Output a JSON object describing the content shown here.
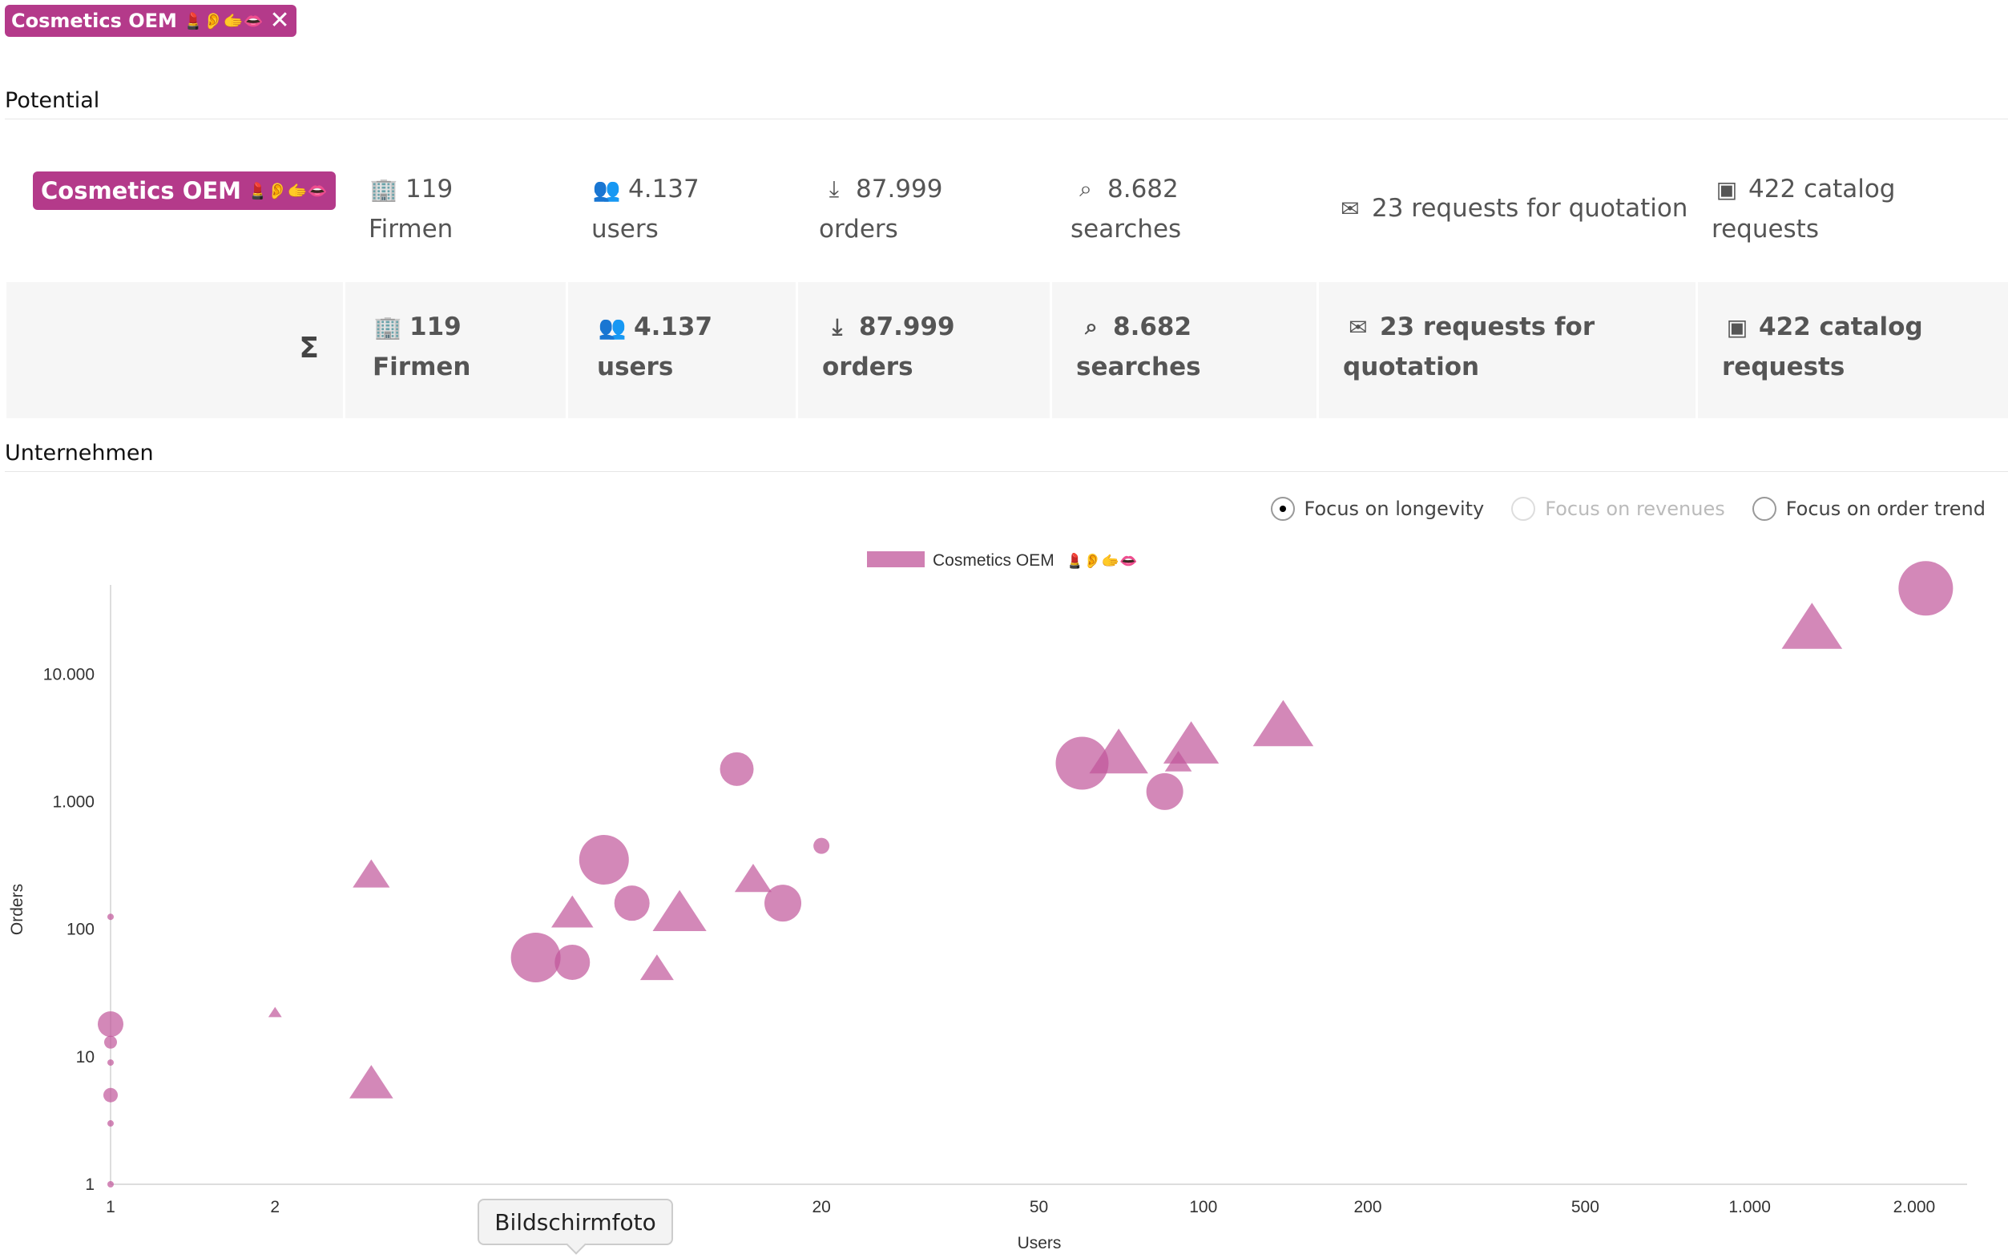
{
  "filter_tag": {
    "label": "Cosmetics OEM",
    "emoji": "💄👂🫱👄",
    "close": "✕"
  },
  "potential": {
    "title": "Potential",
    "segment_label": "Cosmetics OEM",
    "segment_emoji": "💄👂🫱👄",
    "sum_symbol": "Σ",
    "stats": [
      {
        "icon": "company-icon",
        "glyph": "🏢",
        "value": "119",
        "label": "Firmen"
      },
      {
        "icon": "users-icon",
        "glyph": "👥",
        "value": "4.137",
        "label": "users"
      },
      {
        "icon": "download-icon",
        "glyph": "⤓",
        "value": "87.999",
        "label": "orders"
      },
      {
        "icon": "search-icon",
        "glyph": "⌕",
        "value": "8.682",
        "label": "searches"
      },
      {
        "icon": "quotation-icon",
        "glyph": "✉",
        "value": "23 requests for quotation",
        "label": ""
      },
      {
        "icon": "catalog-icon",
        "glyph": "▣",
        "value": "422 catalog",
        "label": "requests"
      }
    ],
    "sum_stats": [
      {
        "value": "119",
        "label": "Firmen"
      },
      {
        "value": "4.137",
        "label": "users"
      },
      {
        "value": "87.999",
        "label": "orders"
      },
      {
        "value": "8.682",
        "label": "searches"
      },
      {
        "value": "23 requests for",
        "label": "quotation"
      },
      {
        "value": "422 catalog",
        "label": "requests"
      }
    ]
  },
  "companies": {
    "title": "Unternehmen",
    "radios": [
      {
        "label": "Focus on longevity",
        "selected": true,
        "disabled": false
      },
      {
        "label": "Focus on revenues",
        "selected": false,
        "disabled": true
      },
      {
        "label": "Focus on order trend",
        "selected": false,
        "disabled": false
      }
    ]
  },
  "tooltip": "Bildschirmfoto",
  "chart_data": {
    "type": "scatter",
    "title": "",
    "xlabel": "Users",
    "ylabel": "Orders",
    "xscale": "log",
    "yscale": "log",
    "xlim": [
      1,
      2500
    ],
    "ylim": [
      1,
      50000
    ],
    "xticks": [
      1,
      2,
      20,
      50,
      100,
      200,
      500,
      1000,
      2000
    ],
    "xtick_labels": [
      "1",
      "2",
      "20",
      "50",
      "100",
      "200",
      "500",
      "1.000",
      "2.000"
    ],
    "yticks": [
      1,
      10,
      100,
      1000,
      10000
    ],
    "ytick_labels": [
      "1",
      "10",
      "100",
      "1.000",
      "10.000"
    ],
    "color": "#c0569a",
    "legend": {
      "label": "Cosmetics OEM",
      "emoji": "💄👂🫱👄",
      "position": "top-center"
    },
    "series": [
      {
        "name": "Cosmetics OEM",
        "points": [
          {
            "x": 1,
            "y": 125,
            "r": 4,
            "shape": "circle"
          },
          {
            "x": 1,
            "y": 18,
            "r": 16,
            "shape": "circle"
          },
          {
            "x": 1,
            "y": 13,
            "r": 8,
            "shape": "circle"
          },
          {
            "x": 1,
            "y": 9,
            "r": 4,
            "shape": "circle"
          },
          {
            "x": 1,
            "y": 5,
            "r": 9,
            "shape": "circle"
          },
          {
            "x": 1,
            "y": 3,
            "r": 4,
            "shape": "circle"
          },
          {
            "x": 1,
            "y": 1,
            "r": 4,
            "shape": "circle"
          },
          {
            "x": 3,
            "y": 260,
            "r": 22,
            "shape": "triangle"
          },
          {
            "x": 2,
            "y": 22,
            "r": 8,
            "shape": "triangle"
          },
          {
            "x": 3,
            "y": 6,
            "r": 26,
            "shape": "triangle"
          },
          {
            "x": 8,
            "y": 350,
            "r": 31,
            "shape": "circle"
          },
          {
            "x": 9,
            "y": 160,
            "r": 22,
            "shape": "circle"
          },
          {
            "x": 6,
            "y": 60,
            "r": 31,
            "shape": "circle"
          },
          {
            "x": 7,
            "y": 55,
            "r": 22,
            "shape": "circle"
          },
          {
            "x": 7,
            "y": 130,
            "r": 25,
            "shape": "triangle"
          },
          {
            "x": 11,
            "y": 130,
            "r": 32,
            "shape": "triangle"
          },
          {
            "x": 10,
            "y": 48,
            "r": 20,
            "shape": "triangle"
          },
          {
            "x": 14,
            "y": 1800,
            "r": 21,
            "shape": "circle"
          },
          {
            "x": 15,
            "y": 240,
            "r": 22,
            "shape": "triangle"
          },
          {
            "x": 17,
            "y": 160,
            "r": 23,
            "shape": "circle"
          },
          {
            "x": 20,
            "y": 450,
            "r": 10,
            "shape": "circle"
          },
          {
            "x": 60,
            "y": 2000,
            "r": 33,
            "shape": "circle"
          },
          {
            "x": 70,
            "y": 2300,
            "r": 35,
            "shape": "triangle"
          },
          {
            "x": 85,
            "y": 1200,
            "r": 23,
            "shape": "circle"
          },
          {
            "x": 90,
            "y": 2000,
            "r": 16,
            "shape": "triangle"
          },
          {
            "x": 95,
            "y": 2700,
            "r": 33,
            "shape": "triangle"
          },
          {
            "x": 140,
            "y": 3800,
            "r": 36,
            "shape": "triangle"
          },
          {
            "x": 1300,
            "y": 22000,
            "r": 36,
            "shape": "triangle"
          },
          {
            "x": 2100,
            "y": 47000,
            "r": 34,
            "shape": "circle"
          }
        ]
      }
    ]
  }
}
